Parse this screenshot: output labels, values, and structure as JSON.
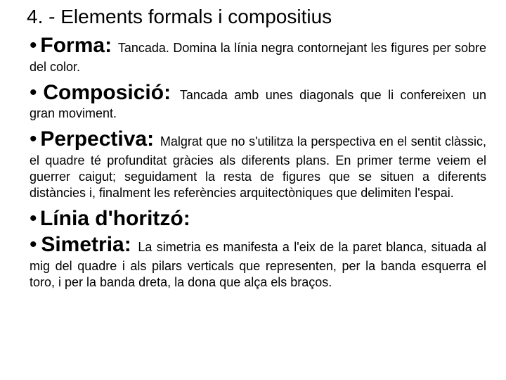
{
  "title": "4. - Elements formals i compositius",
  "items": [
    {
      "lead": "Forma",
      "desc": "Tancada. Domina la línia negra contornejant les figures per sobre del color."
    },
    {
      "lead": "Composició",
      "desc": "Tancada amb unes diagonals que li confereixen un gran moviment."
    },
    {
      "lead": "Perpectiva",
      "desc": "Malgrat que no s'utilitza la perspectiva en el sentit clàssic, el quadre té profunditat gràcies als diferents plans. En primer terme veiem el guerrer caigut; seguidament la resta de figures que se situen a diferents distàncies i, finalment les referències arquitectòniques que delimiten l'espai."
    },
    {
      "lead": "Línia d'horitzó",
      "desc": ""
    },
    {
      "lead": "Simetria",
      "desc": "La simetria es manifesta a l'eix de la paret blanca, situada al mig del quadre i als pilars verticals que representen, per la banda esquerra el toro, i per la banda dreta, la dona que alça els braços."
    }
  ],
  "style": {
    "bg": "#ffffff",
    "fg": "#000000",
    "title_fontsize": 28,
    "lead_fontsize": 30,
    "desc_fontsize": 18,
    "font_family": "Verdana"
  }
}
